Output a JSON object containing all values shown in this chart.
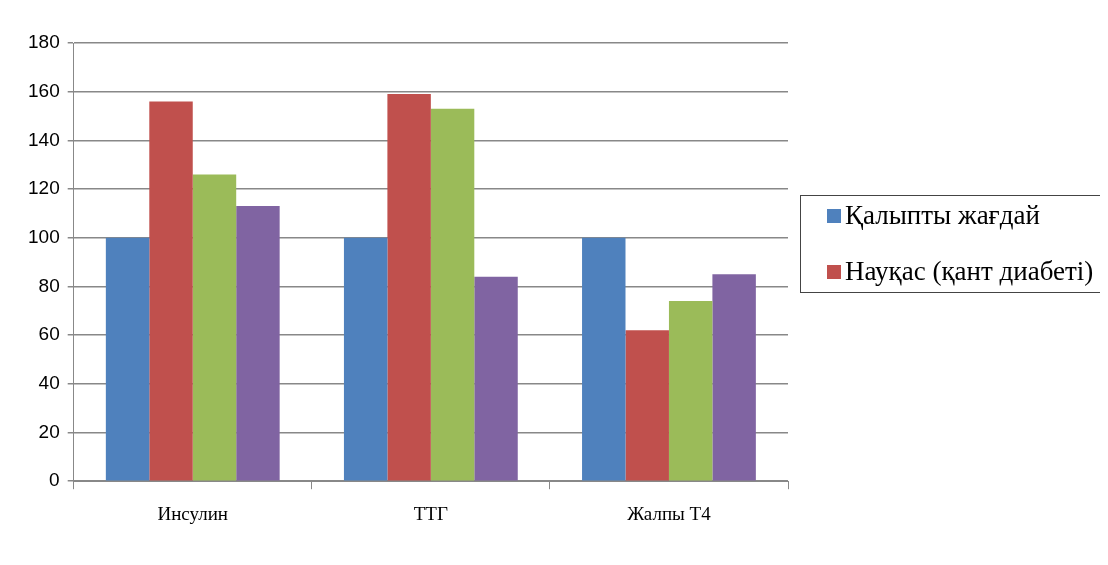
{
  "chart_data": {
    "type": "bar",
    "categories": [
      "Инсулин",
      "ТТГ",
      "Жалпы Т4"
    ],
    "series": [
      {
        "name": "Қалыпты жағдай",
        "color": "#4f81bd",
        "values": [
          100,
          100,
          100
        ]
      },
      {
        "name": "Науқас (қант диабеті)",
        "color": "#c0504d",
        "values": [
          156,
          159,
          62
        ]
      },
      {
        "color": "#9bbb59",
        "values": [
          126,
          153,
          74
        ]
      },
      {
        "color": "#8064a2",
        "values": [
          113,
          84,
          85
        ]
      }
    ],
    "ylim": [
      0,
      180
    ],
    "yticks": [
      0,
      20,
      40,
      60,
      80,
      100,
      120,
      140,
      160,
      180
    ],
    "grid": "y",
    "legend": "right"
  }
}
